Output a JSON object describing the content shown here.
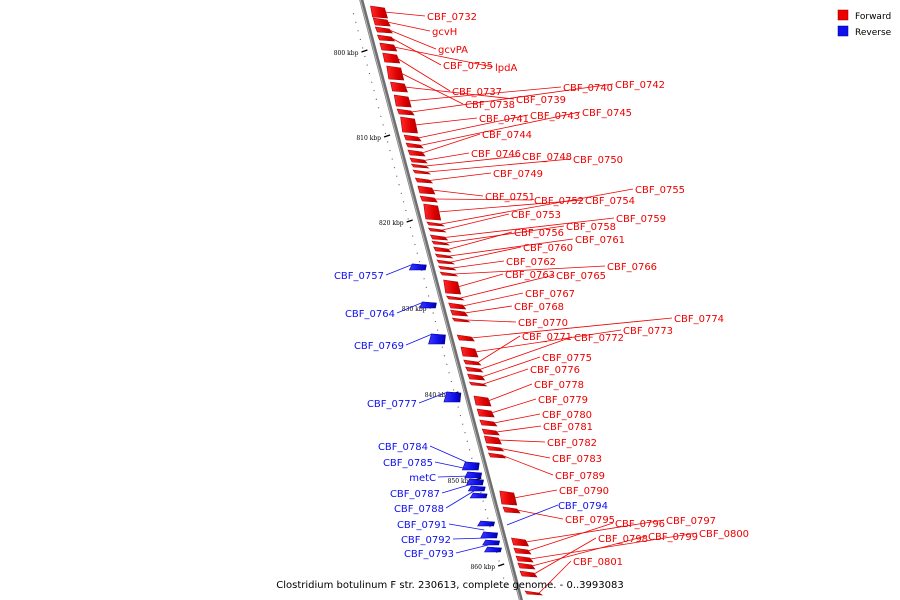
{
  "colors": {
    "forward": "#ee0000",
    "forward_dark": "#a80000",
    "reverse": "#1010ee",
    "reverse_dark": "#00009a",
    "backbone": "#808080",
    "background": "#ffffff"
  },
  "legend": {
    "forward": {
      "label": "Forward",
      "color": "#ee0000"
    },
    "reverse": {
      "label": "Reverse",
      "color": "#1010ee"
    }
  },
  "caption": "Clostridium botulinum F str. 230613, complete genome. - 0..3993083",
  "ticks": [
    {
      "label": "800 kbp"
    },
    {
      "label": "810 kbp"
    },
    {
      "label": "820 kbp"
    },
    {
      "label": "830 kbp"
    },
    {
      "label": "840 kbp"
    },
    {
      "label": "850 kbp"
    },
    {
      "label": "860 kbp"
    }
  ],
  "forward_labels": [
    "CBF_0732",
    "gcvH",
    "gcvPA",
    "CBF_0735",
    "lpdA",
    "CBF_0737",
    "CBF_0738",
    "CBF_0739",
    "CBF_0740",
    "CBF_0742",
    "CBF_0741",
    "CBF_0743",
    "CBF_0745",
    "CBF_0744",
    "CBF_0746",
    "CBF_0748",
    "CBF_0750",
    "CBF_0749",
    "CBF_0751",
    "CBF_0752",
    "CBF_0754",
    "CBF_0755",
    "CBF_0753",
    "CBF_0759",
    "CBF_0758",
    "CBF_0756",
    "CBF_0761",
    "CBF_0760",
    "CBF_0762",
    "CBF_0766",
    "CBF_0763",
    "CBF_0765",
    "CBF_0767",
    "CBF_0768",
    "CBF_0770",
    "CBF_0774",
    "CBF_0773",
    "CBF_0771",
    "CBF_0772",
    "CBF_0775",
    "CBF_0776",
    "CBF_0778",
    "CBF_0779",
    "CBF_0780",
    "CBF_0781",
    "CBF_0782",
    "CBF_0783",
    "CBF_0789",
    "CBF_0790",
    "CBF_0795",
    "CBF_0797",
    "CBF_0796",
    "CBF_0800",
    "CBF_0799",
    "CBF_0798",
    "CBF_0801"
  ],
  "reverse_labels": [
    "CBF_0757",
    "CBF_0764",
    "CBF_0769",
    "CBF_0777",
    "CBF_0784",
    "CBF_0785",
    "metC",
    "CBF_0787",
    "CBF_0788",
    "CBF_0794",
    "CBF_0791",
    "CBF_0792",
    "CBF_0793"
  ]
}
